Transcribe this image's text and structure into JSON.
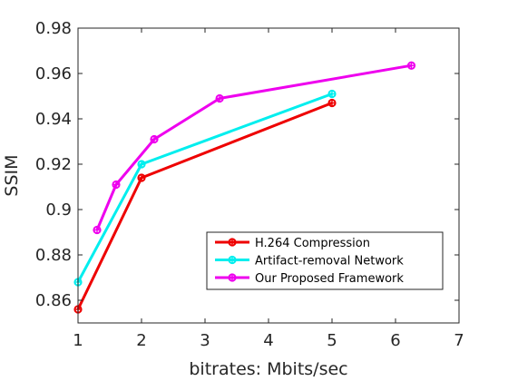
{
  "chart_data": {
    "type": "line",
    "title": "",
    "xlabel": "bitrates: Mbits/sec",
    "ylabel": "SSIM",
    "xlim": [
      1,
      7
    ],
    "ylim": [
      0.85,
      0.98
    ],
    "xticks": [
      1,
      2,
      3,
      4,
      5,
      6,
      7
    ],
    "xtick_labels": [
      "1",
      "2",
      "3",
      "4",
      "5",
      "6",
      "7"
    ],
    "yticks": [
      0.86,
      0.88,
      0.9,
      0.92,
      0.94,
      0.96,
      0.98
    ],
    "ytick_labels": [
      "0.86",
      "0.88",
      "0.9",
      "0.92",
      "0.94",
      "0.96",
      "0.98"
    ],
    "grid": false,
    "legend_position": "bottom-right",
    "series": [
      {
        "name": "H.264 Compression",
        "color": "#ee0000",
        "marker": "circle-cross",
        "x": [
          1.0,
          2.0,
          5.0
        ],
        "y": [
          0.856,
          0.914,
          0.947
        ]
      },
      {
        "name": "Artifact-removal Network",
        "color": "#00eeee",
        "marker": "circle-cross",
        "x": [
          1.0,
          2.0,
          5.0
        ],
        "y": [
          0.868,
          0.92,
          0.951
        ]
      },
      {
        "name": "Our Proposed Framework",
        "color": "#ee00ee",
        "marker": "circle-cross",
        "x": [
          1.3,
          1.6,
          2.2,
          3.23,
          6.25
        ],
        "y": [
          0.891,
          0.911,
          0.931,
          0.949,
          0.9635
        ]
      }
    ]
  }
}
